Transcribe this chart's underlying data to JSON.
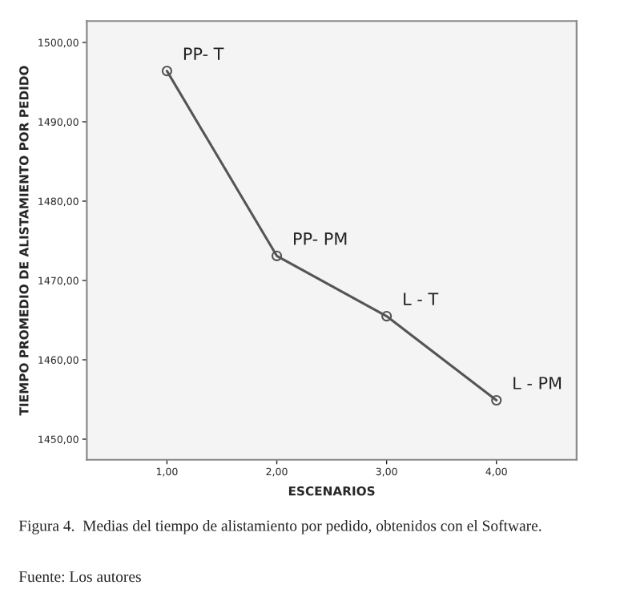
{
  "chart_data": {
    "type": "line",
    "xlabel": "ESCENARIOS",
    "ylabel": "TIEMPO PROMEDIO DE ALISTAMIENTO POR PEDIDO",
    "x": [
      1,
      2,
      3,
      4
    ],
    "series": [
      {
        "color": "#555555",
        "values": [
          1496.4,
          1473.1,
          1465.5,
          1454.9
        ]
      }
    ],
    "marker": "circle",
    "line_style": "solid",
    "grid": false,
    "legend": false,
    "xlim": [
      0.27,
      4.73
    ],
    "ylim": [
      1447.4,
      1502.7
    ],
    "xticks": [
      {
        "value": 1,
        "label": "1,00"
      },
      {
        "value": 2,
        "label": "2,00"
      },
      {
        "value": 3,
        "label": "3,00"
      },
      {
        "value": 4,
        "label": "4,00"
      }
    ],
    "yticks": [
      {
        "value": 1450,
        "label": "1450,00"
      },
      {
        "value": 1460,
        "label": "1460,00"
      },
      {
        "value": 1470,
        "label": "1470,00"
      },
      {
        "value": 1480,
        "label": "1480,00"
      },
      {
        "value": 1490,
        "label": "1490,00"
      },
      {
        "value": 1500,
        "label": "1500,00"
      }
    ],
    "annotations": [
      {
        "text": "PP- T",
        "x": 1,
        "y": 1496.4
      },
      {
        "text": "PP- PM",
        "x": 2,
        "y": 1473.1
      },
      {
        "text": "L - T",
        "x": 3,
        "y": 1465.5
      },
      {
        "text": "L - PM",
        "x": 4,
        "y": 1454.9
      },
      "Figura 4.  Medias del tiempo de alistamiento por pedido, obtenidos con el Software.",
      "Fuente: Los autores"
    ]
  }
}
